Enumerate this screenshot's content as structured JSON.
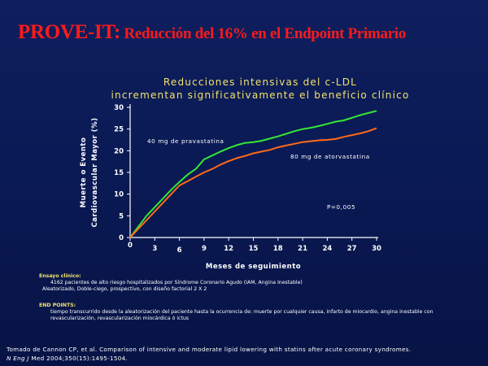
{
  "slide": {
    "title_lead": "PROVE-IT:",
    "title_rest": " Reducción del 16% en el Endpoint Primario"
  },
  "chart_data": {
    "type": "line",
    "title_line1": "Reducciones intensivas del c-LDL",
    "title_line2": "incrementan significativamente el beneficio clínico",
    "xlabel": "Meses de seguimiento",
    "ylabel_line1": "Muerte o Evento",
    "ylabel_line2": "Cardiovascular Mayor (%)",
    "xlim": [
      0,
      30
    ],
    "ylim": [
      0,
      30
    ],
    "xticks": [
      0,
      3,
      6,
      9,
      12,
      15,
      18,
      21,
      24,
      27,
      30
    ],
    "yticks": [
      0,
      5,
      10,
      15,
      20,
      25,
      30
    ],
    "series": [
      {
        "name": "40 mg de pravastatina",
        "color": "#33e833",
        "x": [
          0,
          1,
          2,
          3,
          4,
          5,
          6,
          7,
          8,
          9,
          10,
          11,
          12,
          13,
          14,
          15,
          16,
          17,
          18,
          19,
          20,
          21,
          22,
          23,
          24,
          25,
          26,
          27,
          28,
          29,
          30
        ],
        "y": [
          0,
          2.5,
          5.0,
          7.0,
          9.0,
          11.0,
          12.8,
          14.5,
          15.8,
          18.0,
          18.9,
          19.8,
          20.6,
          21.3,
          21.8,
          22.0,
          22.3,
          22.8,
          23.3,
          23.9,
          24.5,
          25.0,
          25.3,
          25.7,
          26.2,
          26.7,
          27.0,
          27.6,
          28.2,
          28.7,
          29.2
        ]
      },
      {
        "name": "80 mg de atorvastatina",
        "color": "#ff6a1a",
        "x": [
          0,
          1,
          2,
          3,
          4,
          5,
          6,
          7,
          8,
          9,
          10,
          11,
          12,
          13,
          14,
          15,
          16,
          17,
          18,
          19,
          20,
          21,
          22,
          23,
          24,
          25,
          26,
          27,
          28,
          29,
          30
        ],
        "y": [
          0,
          2.0,
          4.0,
          6.0,
          8.0,
          10.0,
          12.0,
          13.0,
          14.0,
          15.0,
          15.8,
          16.8,
          17.6,
          18.3,
          18.8,
          19.4,
          19.8,
          20.2,
          20.8,
          21.2,
          21.6,
          22.0,
          22.2,
          22.4,
          22.5,
          22.7,
          23.2,
          23.6,
          24.0,
          24.5,
          25.2
        ]
      }
    ],
    "annotations": {
      "pvalue": "P=0,005"
    }
  },
  "info": {
    "ensayo_heading": "Ensayo clínico:",
    "ensayo_line1": "4162 pacientes de alto riesgo hospitalizados por Síndrome Coronario Agudo (IAM, Angina Inestable)",
    "ensayo_line2": "Aleatorizado, Doble-ciego, prospectivo, con diseño factorial 2 X 2",
    "endpoints_heading": "END POINTS:",
    "endpoints_line1": "tiempo transcurrido desde la aleatorización del paciente hasta la ocurrencia de:  muerte por cualquier causa, infarto de miocardio, angina inestable con",
    "endpoints_line2": "revascularización, revascularización miocárdica ó ictus"
  },
  "reference": {
    "line1": "Tomado de Cannon CP, et al. Comparison of intensive and moderate lipid lowering with statins after acute coronary syndromes.",
    "journal": "N Eng J",
    "line2_rest": " Med 2004;350(15):1495-1504."
  }
}
